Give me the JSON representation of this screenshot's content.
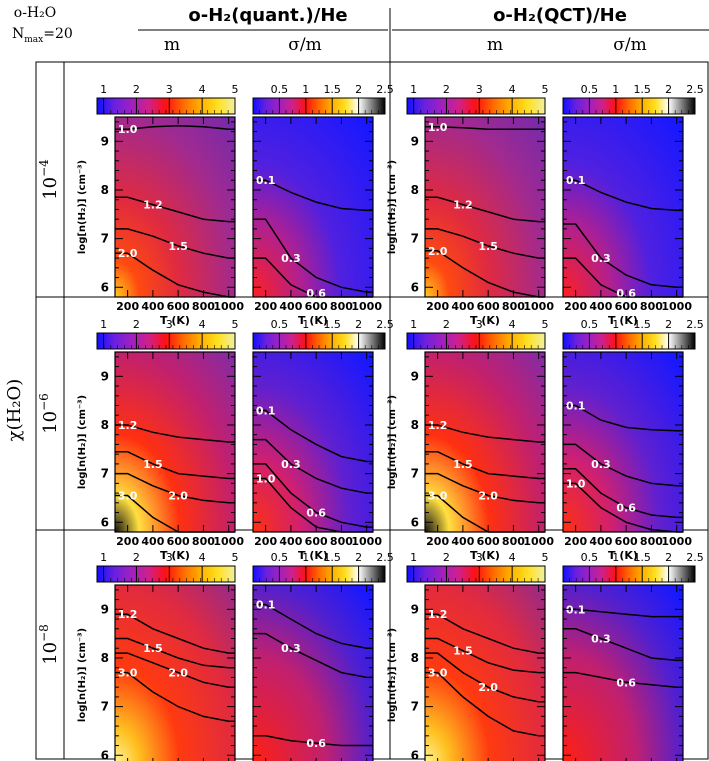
{
  "header": {
    "species_line1": "o-H₂O",
    "species_line2": "N",
    "species_sub": "max",
    "species_val": "=20",
    "groups": [
      {
        "label": "o-H₂(quant.)/He"
      },
      {
        "label": "o-H₂(QCT)/He"
      }
    ],
    "col_labels": [
      "m",
      "σ/m",
      "m",
      "σ/m"
    ],
    "row_axis_label": "χ(H₂O)",
    "row_labels": [
      {
        "base": "10",
        "exp": "−4"
      },
      {
        "base": "10",
        "exp": "−6"
      },
      {
        "base": "10",
        "exp": "−8"
      }
    ]
  },
  "colors": {
    "m_scale": [
      "#1010ff",
      "#6a20e0",
      "#a020c0",
      "#d0208a",
      "#ff1010",
      "#ff6a00",
      "#ffb000",
      "#ffe020",
      "#f0f0a0"
    ],
    "s_scale": [
      "#1010ff",
      "#6a20e0",
      "#a020c0",
      "#d0208a",
      "#ff1010",
      "#ff6a00",
      "#ffb000",
      "#ffe020",
      "#ffffff",
      "#808080",
      "#000000"
    ]
  },
  "chart_data": {
    "type": "heatmap",
    "x": {
      "label": "T (K)",
      "ticks": [
        200,
        400,
        600,
        800,
        1000
      ],
      "range": [
        100,
        1050
      ]
    },
    "y": {
      "label": "log[n(H₂)] (cm⁻³)",
      "ticks": [
        6,
        7,
        8,
        9
      ],
      "range": [
        5.8,
        9.5
      ]
    },
    "colorbars": {
      "m": {
        "ticks": [
          "1",
          "2",
          "3",
          "4",
          "5"
        ],
        "range": [
          0.8,
          5
        ]
      },
      "sigma_m": {
        "ticks": [
          "0.5",
          "1",
          "1.5",
          "2",
          "2.5"
        ],
        "range": [
          0,
          2.5
        ]
      }
    },
    "panels": [
      {
        "row": 0,
        "col": 0,
        "quantity": "m",
        "contours": [
          {
            "label": "1.0",
            "y": [
              9.25,
              9.3,
              9.32,
              9.3,
              9.25
            ]
          },
          {
            "label": "1.2",
            "y": [
              7.85,
              7.7,
              7.55,
              7.4,
              7.35
            ]
          },
          {
            "label": "1.5",
            "y": [
              7.2,
              7.05,
              6.85,
              6.7,
              6.6
            ]
          },
          {
            "label": "2.0",
            "y": [
              6.7,
              6.35,
              6.05,
              5.9,
              5.8
            ]
          }
        ]
      },
      {
        "row": 0,
        "col": 1,
        "quantity": "sigma_m",
        "contours": [
          {
            "label": "0.1",
            "y": [
              8.2,
              7.95,
              7.75,
              7.62,
              7.58
            ]
          },
          {
            "label": "0.3",
            "y": [
              7.4,
              6.6,
              6.2,
              6.0,
              5.9
            ]
          },
          {
            "label": "0.6",
            "y": [
              6.6,
              6.05,
              5.8,
              5.8,
              5.8
            ]
          }
        ]
      },
      {
        "row": 0,
        "col": 2,
        "quantity": "m",
        "contours": [
          {
            "label": "1.0",
            "y": [
              9.3,
              9.28,
              9.25,
              9.25,
              9.25
            ]
          },
          {
            "label": "1.2",
            "y": [
              7.85,
              7.7,
              7.55,
              7.4,
              7.35
            ]
          },
          {
            "label": "1.5",
            "y": [
              7.2,
              7.05,
              6.85,
              6.7,
              6.6
            ]
          },
          {
            "label": "2.0",
            "y": [
              6.75,
              6.4,
              6.1,
              5.9,
              5.8
            ]
          }
        ]
      },
      {
        "row": 0,
        "col": 3,
        "quantity": "sigma_m",
        "contours": [
          {
            "label": "0.1",
            "y": [
              8.2,
              7.95,
              7.75,
              7.62,
              7.58
            ]
          },
          {
            "label": "0.3",
            "y": [
              7.3,
              6.6,
              6.25,
              6.05,
              6.0
            ]
          },
          {
            "label": "0.6",
            "y": [
              6.6,
              6.05,
              5.8,
              5.8,
              5.8
            ]
          }
        ]
      },
      {
        "row": 1,
        "col": 0,
        "quantity": "m",
        "contours": [
          {
            "label": "1.2",
            "y": [
              8.0,
              7.85,
              7.75,
              7.7,
              7.65
            ]
          },
          {
            "label": "1.5",
            "y": [
              7.45,
              7.2,
              7.0,
              6.95,
              6.9
            ]
          },
          {
            "label": "2.0",
            "y": [
              7.0,
              6.75,
              6.55,
              6.45,
              6.4
            ]
          },
          {
            "label": "3.0",
            "y": [
              6.55,
              6.1,
              5.8,
              5.8,
              5.8
            ]
          }
        ]
      },
      {
        "row": 1,
        "col": 1,
        "quantity": "sigma_m",
        "contours": [
          {
            "label": "0.1",
            "y": [
              8.3,
              7.9,
              7.6,
              7.35,
              7.25
            ]
          },
          {
            "label": "0.3",
            "y": [
              7.7,
              7.2,
              6.9,
              6.7,
              6.6
            ]
          },
          {
            "label": "0.6",
            "y": [
              7.2,
              6.6,
              6.2,
              6.0,
              5.9
            ]
          },
          {
            "label": "1.0",
            "y": [
              6.9,
              6.3,
              5.9,
              5.8,
              5.8
            ]
          }
        ]
      },
      {
        "row": 1,
        "col": 2,
        "quantity": "m",
        "contours": [
          {
            "label": "1.2",
            "y": [
              8.0,
              7.85,
              7.75,
              7.7,
              7.65
            ]
          },
          {
            "label": "1.5",
            "y": [
              7.45,
              7.2,
              7.0,
              6.95,
              6.9
            ]
          },
          {
            "label": "2.0",
            "y": [
              7.0,
              6.75,
              6.55,
              6.45,
              6.4
            ]
          },
          {
            "label": "3.0",
            "y": [
              6.55,
              6.1,
              5.8,
              5.8,
              5.8
            ]
          }
        ]
      },
      {
        "row": 1,
        "col": 3,
        "quantity": "sigma_m",
        "contours": [
          {
            "label": "0.1",
            "y": [
              8.4,
              8.1,
              7.95,
              7.9,
              7.88
            ]
          },
          {
            "label": "0.3",
            "y": [
              7.6,
              7.2,
              6.95,
              6.8,
              6.75
            ]
          },
          {
            "label": "0.6",
            "y": [
              7.1,
              6.6,
              6.3,
              6.15,
              6.1
            ]
          },
          {
            "label": "1.0",
            "y": [
              6.8,
              6.3,
              6.0,
              5.85,
              5.8
            ]
          }
        ]
      },
      {
        "row": 2,
        "col": 0,
        "quantity": "m",
        "contours": [
          {
            "label": "1.2",
            "y": [
              8.9,
              8.6,
              8.4,
              8.2,
              8.1
            ]
          },
          {
            "label": "1.5",
            "y": [
              8.4,
              8.2,
              8.0,
              7.85,
              7.8
            ]
          },
          {
            "label": "2.0",
            "y": [
              8.1,
              7.9,
              7.7,
              7.5,
              7.4
            ]
          },
          {
            "label": "3.0",
            "y": [
              7.7,
              7.3,
              7.0,
              6.8,
              6.7
            ]
          }
        ]
      },
      {
        "row": 2,
        "col": 1,
        "quantity": "sigma_m",
        "contours": [
          {
            "label": "0.1",
            "y": [
              9.1,
              8.8,
              8.5,
              8.3,
              8.2
            ]
          },
          {
            "label": "0.3",
            "y": [
              8.5,
              8.2,
              7.95,
              7.7,
              7.6
            ]
          },
          {
            "label": "0.6",
            "y": [
              6.4,
              6.3,
              6.25,
              6.2,
              6.2
            ]
          }
        ]
      },
      {
        "row": 2,
        "col": 2,
        "quantity": "m",
        "contours": [
          {
            "label": "1.2",
            "y": [
              8.9,
              8.6,
              8.4,
              8.2,
              8.1
            ]
          },
          {
            "label": "1.5",
            "y": [
              8.4,
              8.15,
              7.9,
              7.75,
              7.7
            ]
          },
          {
            "label": "2.0",
            "y": [
              8.1,
              7.7,
              7.4,
              7.2,
              7.1
            ]
          },
          {
            "label": "3.0",
            "y": [
              7.7,
              7.2,
              6.8,
              6.5,
              6.4
            ]
          }
        ]
      },
      {
        "row": 2,
        "col": 3,
        "quantity": "sigma_m",
        "contours": [
          {
            "label": "0.1",
            "y": [
              9.0,
              8.95,
              8.9,
              8.85,
              8.85
            ]
          },
          {
            "label": "0.3",
            "y": [
              8.6,
              8.4,
              8.2,
              8.0,
              7.95
            ]
          },
          {
            "label": "0.6",
            "y": [
              7.7,
              7.6,
              7.5,
              7.45,
              7.4
            ]
          }
        ]
      }
    ]
  }
}
